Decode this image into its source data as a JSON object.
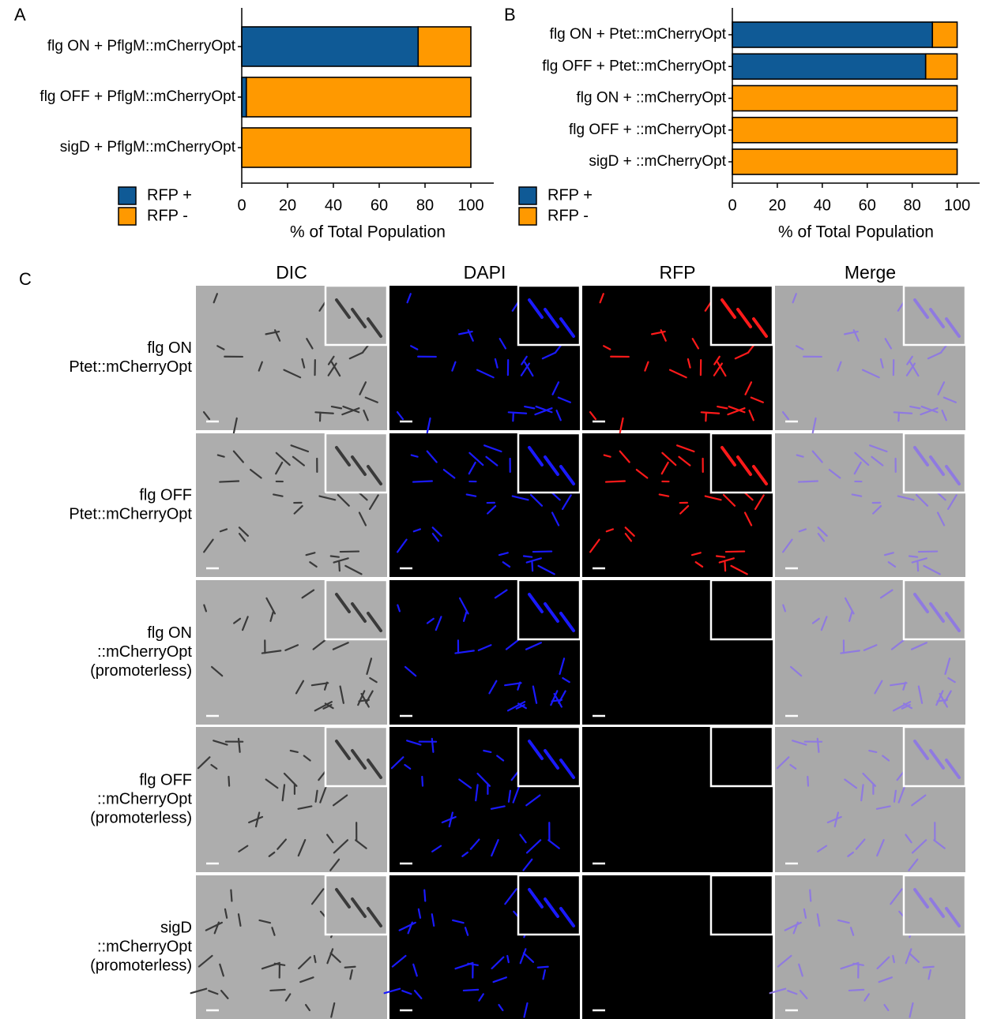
{
  "chart_data": [
    {
      "type": "bar",
      "orientation": "horizontal",
      "stacked": true,
      "label": "A",
      "categories": [
        "flg ON + PflgM::mCherryOpt",
        "flg OFF + PflgM::mCherryOpt",
        "sigD + PflgM::mCherryOpt"
      ],
      "series": [
        {
          "name": "RFP +",
          "color": "#0f5a96",
          "values": [
            77,
            2,
            0
          ]
        },
        {
          "name": "RFP -",
          "color": "#ff9900",
          "values": [
            23,
            98,
            100
          ]
        }
      ],
      "xlabel": "% of Total Population",
      "xlim": [
        0,
        110
      ],
      "xticks": [
        0,
        20,
        40,
        60,
        80,
        100
      ]
    },
    {
      "type": "bar",
      "orientation": "horizontal",
      "stacked": true,
      "label": "B",
      "categories": [
        "flg ON + Ptet::mCherryOpt",
        "flg OFF + Ptet::mCherryOpt",
        "flg ON + ::mCherryOpt",
        "flg OFF + ::mCherryOpt",
        "sigD + ::mCherryOpt"
      ],
      "series": [
        {
          "name": "RFP +",
          "color": "#0f5a96",
          "values": [
            89,
            86,
            0,
            0,
            0
          ]
        },
        {
          "name": "RFP -",
          "color": "#ff9900",
          "values": [
            11,
            14,
            100,
            100,
            100
          ]
        }
      ],
      "xlabel": "% of Total Population",
      "xlim": [
        0,
        110
      ],
      "xticks": [
        0,
        20,
        40,
        60,
        80,
        100
      ]
    }
  ],
  "panel_c": {
    "label": "C",
    "columns": [
      "DIC",
      "DAPI",
      "RFP",
      "Merge"
    ],
    "rows": [
      {
        "lines": [
          "flg ON",
          "Ptet::mCherryOpt"
        ]
      },
      {
        "lines": [
          "flg OFF",
          "Ptet::mCherryOpt"
        ]
      },
      {
        "lines": [
          "flg ON",
          "::mCherryOpt",
          "(promoterless)"
        ]
      },
      {
        "lines": [
          "flg OFF",
          "::mCherryOpt",
          "(promoterless)"
        ]
      },
      {
        "lines": [
          "sigD",
          "::mCherryOpt",
          "(promoterless)"
        ]
      }
    ]
  }
}
